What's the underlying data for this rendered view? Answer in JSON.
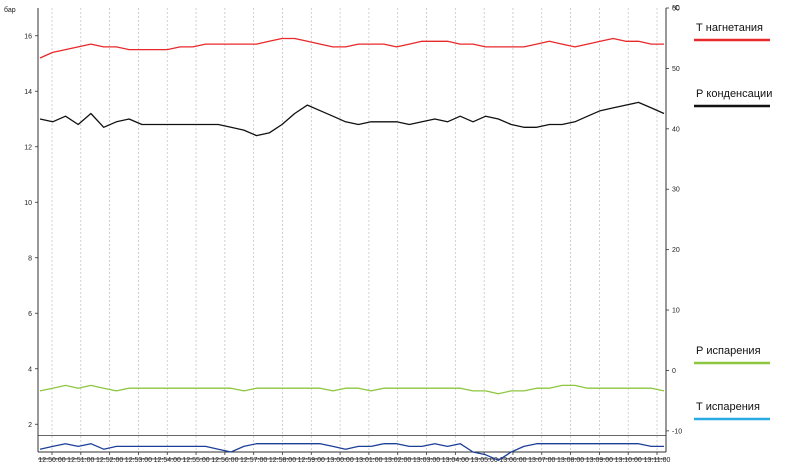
{
  "chart_data": {
    "type": "line",
    "left_axis": {
      "unit": "бар",
      "range": [
        1,
        17
      ],
      "ticks": [
        2,
        4,
        6,
        8,
        10,
        12,
        14,
        16
      ]
    },
    "right_axis": {
      "unit": "°C",
      "range": [
        -13.5,
        60
      ],
      "ticks": [
        -10,
        0,
        10,
        20,
        30,
        40,
        50,
        60
      ]
    },
    "x_ticks": [
      "12:50:00",
      "12:51:00",
      "12:52:00",
      "12:53:00",
      "12:54:00",
      "12:55:00",
      "12:56:00",
      "12:57:00",
      "12:58:00",
      "12:59:00",
      "13:00:00",
      "13:01:00",
      "13:02:00",
      "13:03:00",
      "13:04:00",
      "13:05:00",
      "13:06:00",
      "13:07:00",
      "13:08:00",
      "13:09:00",
      "13:10:00",
      "13:11:00"
    ],
    "grid": "vertical dashed",
    "reference_lines_left": [
      1.6,
      0.75
    ],
    "legend_placement": "right",
    "series": [
      {
        "name": "Т нагнетания",
        "axis": "left",
        "color": "#e8282a",
        "values": [
          15.2,
          15.4,
          15.5,
          15.6,
          15.7,
          15.6,
          15.6,
          15.5,
          15.5,
          15.5,
          15.5,
          15.6,
          15.6,
          15.7,
          15.7,
          15.7,
          15.7,
          15.7,
          15.8,
          15.9,
          15.9,
          15.8,
          15.7,
          15.6,
          15.6,
          15.7,
          15.7,
          15.7,
          15.6,
          15.7,
          15.8,
          15.8,
          15.8,
          15.7,
          15.7,
          15.6,
          15.6,
          15.6,
          15.6,
          15.7,
          15.8,
          15.7,
          15.6,
          15.7,
          15.8,
          15.9,
          15.8,
          15.8,
          15.7,
          15.7
        ]
      },
      {
        "name": "Р конденсации",
        "axis": "left",
        "color": "#111111",
        "values": [
          13.0,
          12.9,
          13.1,
          12.8,
          13.2,
          12.7,
          12.9,
          13.0,
          12.8,
          12.8,
          12.8,
          12.8,
          12.8,
          12.8,
          12.8,
          12.7,
          12.6,
          12.4,
          12.5,
          12.8,
          13.2,
          13.5,
          13.3,
          13.1,
          12.9,
          12.8,
          12.9,
          12.9,
          12.9,
          12.8,
          12.9,
          13.0,
          12.9,
          13.1,
          12.9,
          13.1,
          13.0,
          12.8,
          12.7,
          12.7,
          12.8,
          12.8,
          12.9,
          13.1,
          13.3,
          13.4,
          13.5,
          13.6,
          13.4,
          13.2
        ]
      },
      {
        "name": "Р испарения",
        "axis": "left",
        "color": "#8dc63f",
        "values": [
          3.2,
          3.3,
          3.4,
          3.3,
          3.4,
          3.3,
          3.2,
          3.3,
          3.3,
          3.3,
          3.3,
          3.3,
          3.3,
          3.3,
          3.3,
          3.3,
          3.2,
          3.3,
          3.3,
          3.3,
          3.3,
          3.3,
          3.3,
          3.2,
          3.3,
          3.3,
          3.2,
          3.3,
          3.3,
          3.3,
          3.3,
          3.3,
          3.3,
          3.3,
          3.2,
          3.2,
          3.1,
          3.2,
          3.2,
          3.3,
          3.3,
          3.4,
          3.4,
          3.3,
          3.3,
          3.3,
          3.3,
          3.3,
          3.3,
          3.2
        ]
      },
      {
        "name": "Т испарения",
        "axis": "left",
        "color": "#1c3f99",
        "legend_color": "#29abe2",
        "values": [
          1.1,
          1.2,
          1.3,
          1.2,
          1.3,
          1.1,
          1.2,
          1.2,
          1.2,
          1.2,
          1.2,
          1.2,
          1.2,
          1.2,
          1.1,
          1.0,
          1.2,
          1.3,
          1.3,
          1.3,
          1.3,
          1.3,
          1.3,
          1.2,
          1.1,
          1.2,
          1.2,
          1.3,
          1.3,
          1.2,
          1.2,
          1.3,
          1.2,
          1.3,
          1.0,
          0.9,
          0.7,
          1.0,
          1.2,
          1.3,
          1.3,
          1.3,
          1.3,
          1.3,
          1.3,
          1.3,
          1.3,
          1.3,
          1.2,
          1.2
        ]
      }
    ]
  }
}
